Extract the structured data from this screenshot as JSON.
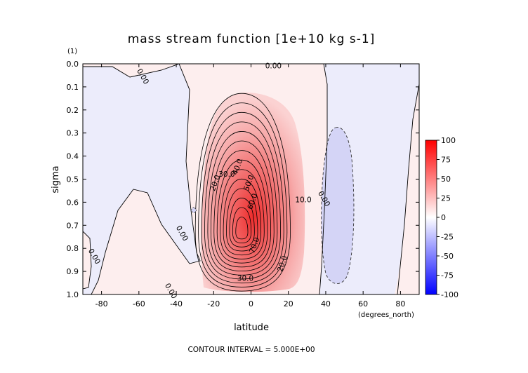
{
  "chart_data": {
    "type": "contour",
    "title": "mass stream function [1e+10 kg s-1]",
    "xlabel": "latitude",
    "ylabel": "sigma",
    "x_units": "(degrees_north)",
    "y_units": "(1)",
    "xlim": [
      -90,
      90
    ],
    "ylim": [
      1.0,
      0.0
    ],
    "x_ticks": [
      "-80",
      "-60",
      "-40",
      "-20",
      "0",
      "20",
      "40",
      "60",
      "80"
    ],
    "y_ticks": [
      "0.0",
      "0.1",
      "0.2",
      "0.3",
      "0.4",
      "0.5",
      "0.6",
      "0.7",
      "0.8",
      "0.9",
      "1.0"
    ],
    "contour_interval_note": "CONTOUR INTERVAL = 5.000E+00",
    "contour_interval": 5,
    "colorbar": {
      "labels": [
        "100",
        "75",
        "50",
        "25",
        "0",
        "-25",
        "-50",
        "-75",
        "-100"
      ],
      "min": -100,
      "max": 100,
      "colors": {
        "negative": "#0000ff",
        "zero": "#ffffff",
        "positive": "#ff0000"
      }
    },
    "features": [
      {
        "name": "main positive cell",
        "lat": -5,
        "sigma": 0.73,
        "peak": 75
      },
      {
        "name": "northern negative cell",
        "lat": 48,
        "sigma": 0.59,
        "peak": -6
      }
    ],
    "contour_labels": [
      {
        "text": "0.00",
        "lat": -59,
        "sigma": 0.06
      },
      {
        "text": "0.00",
        "lat": 12,
        "sigma": 0.02
      },
      {
        "text": "0.00",
        "lat": -85,
        "sigma": 0.84
      },
      {
        "text": "0.00",
        "lat": -38,
        "sigma": 0.74
      },
      {
        "text": "0.00",
        "lat": -44,
        "sigma": 0.99
      },
      {
        "text": "0.00",
        "lat": 38,
        "sigma": 0.59
      },
      {
        "text": "10.0",
        "lat": 28,
        "sigma": 0.6
      },
      {
        "text": "20.0",
        "lat": -18,
        "sigma": 0.52
      },
      {
        "text": "30.0",
        "lat": -13,
        "sigma": 0.49
      },
      {
        "text": "40.0",
        "lat": -6,
        "sigma": 0.45
      },
      {
        "text": "50.0",
        "lat": 0,
        "sigma": 0.52
      },
      {
        "text": "60.0",
        "lat": 2,
        "sigma": 0.6
      },
      {
        "text": "70.0",
        "lat": 3,
        "sigma": 0.79
      },
      {
        "text": "20.0",
        "lat": 18,
        "sigma": 0.87
      },
      {
        "text": "30.0",
        "lat": -3,
        "sigma": 0.94
      }
    ]
  }
}
